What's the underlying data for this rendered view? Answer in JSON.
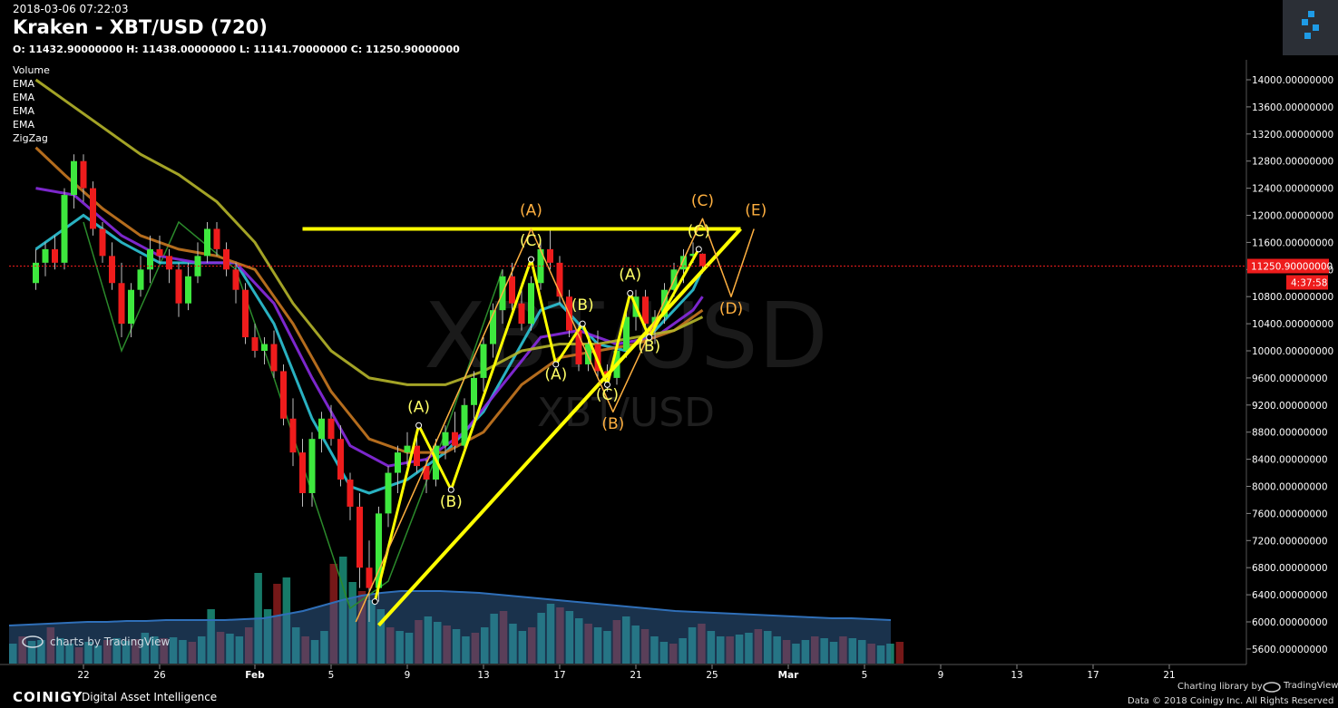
{
  "header": {
    "timestamp": "2018-03-06 07:22:03",
    "title": "Kraken - XBT/USD (720)",
    "ohlc": "O: 11432.90000000 H: 11438.00000000 L: 11141.70000000 C: 11250.90000000"
  },
  "indicators": [
    "Volume",
    "EMA",
    "EMA",
    "EMA",
    "EMA",
    "ZigZag"
  ],
  "footer": {
    "brand": "COINIGY",
    "tagline": "Digital Asset Intelligence",
    "charting_library": "Charting library by",
    "tv_brand": "TradingView",
    "data_line": "Data © 2018  Coinigy Inc. All Rights Reserved",
    "watermark": "charts by TradingView"
  },
  "chart_data": {
    "type": "candlestick",
    "watermark": "XBT/USD",
    "price_axis": {
      "ticks": [
        5600,
        6000,
        6400,
        6800,
        7200,
        7600,
        8000,
        8400,
        8800,
        9200,
        9600,
        10000,
        10400,
        10800,
        11200,
        11600,
        12000,
        12400,
        12800,
        13200,
        13600,
        14000
      ],
      "tick_labels": [
        "5600.00000000",
        "6000.00000000",
        "6400.00000000",
        "6800.00000000",
        "7200.00000000",
        "7600.00000000",
        "8000.00000000",
        "8400.00000000",
        "8800.00000000",
        "9200.00000000",
        "9600.00000000",
        "10000.00000000",
        "10400.00000000",
        "10800.00000000",
        "11200.00000000",
        "11600.00000000",
        "12000.00000000",
        "12400.00000000",
        "12800.00000000",
        "13200.00000000",
        "13600.00000000",
        "14000.00000000"
      ],
      "current_price": 11250.9,
      "current_label": "11250.90000000",
      "countdown": "4:37:58"
    },
    "time_axis": {
      "labels": [
        "22",
        "26",
        "Feb",
        "5",
        "9",
        "13",
        "17",
        "21",
        "25",
        "Mar",
        "5",
        "9",
        "13",
        "17",
        "21"
      ],
      "day_index": [
        2,
        6,
        11,
        15,
        19,
        23,
        27,
        31,
        35,
        39,
        43,
        47,
        51,
        55,
        59
      ]
    },
    "candles": [
      [
        -0.5,
        11000,
        11500,
        10900,
        11300
      ],
      [
        0,
        11300,
        11600,
        11100,
        11500
      ],
      [
        0.5,
        11500,
        11700,
        11200,
        11300
      ],
      [
        1,
        11300,
        12400,
        11200,
        12300
      ],
      [
        1.5,
        12300,
        12900,
        12100,
        12800
      ],
      [
        2,
        12800,
        12900,
        12200,
        12400
      ],
      [
        2.5,
        12400,
        12500,
        11700,
        11800
      ],
      [
        3,
        11800,
        11900,
        11300,
        11400
      ],
      [
        3.5,
        11400,
        11600,
        10900,
        11000
      ],
      [
        4,
        11000,
        11300,
        10200,
        10400
      ],
      [
        4.5,
        10400,
        11000,
        10200,
        10900
      ],
      [
        5,
        10900,
        11400,
        10800,
        11200
      ],
      [
        5.5,
        11200,
        11700,
        11000,
        11500
      ],
      [
        6,
        11500,
        11700,
        11300,
        11400
      ],
      [
        6.5,
        11400,
        11500,
        11000,
        11200
      ],
      [
        7,
        11200,
        11300,
        10500,
        10700
      ],
      [
        7.5,
        10700,
        11300,
        10600,
        11100
      ],
      [
        8,
        11100,
        11600,
        11000,
        11400
      ],
      [
        8.5,
        11400,
        11900,
        11300,
        11800
      ],
      [
        9,
        11800,
        11900,
        11400,
        11500
      ],
      [
        9.5,
        11500,
        11600,
        11100,
        11200
      ],
      [
        10,
        11200,
        11300,
        10700,
        10900
      ],
      [
        10.5,
        10900,
        11000,
        10100,
        10200
      ],
      [
        11,
        10200,
        10400,
        9900,
        10000
      ],
      [
        11.5,
        10000,
        10200,
        9800,
        10100
      ],
      [
        12,
        10100,
        10300,
        9600,
        9700
      ],
      [
        12.5,
        9700,
        9800,
        8900,
        9000
      ],
      [
        13,
        9000,
        9300,
        8300,
        8500
      ],
      [
        13.5,
        8500,
        8700,
        7700,
        7900
      ],
      [
        14,
        7900,
        8800,
        7700,
        8700
      ],
      [
        14.5,
        8700,
        9100,
        8500,
        9000
      ],
      [
        15,
        9000,
        9200,
        8600,
        8700
      ],
      [
        15.5,
        8700,
        8900,
        8000,
        8100
      ],
      [
        16,
        8100,
        8200,
        7500,
        7700
      ],
      [
        16.5,
        7700,
        7900,
        6500,
        6800
      ],
      [
        17,
        6800,
        7200,
        6000,
        6500
      ],
      [
        17.5,
        6500,
        7700,
        6300,
        7600
      ],
      [
        18,
        7600,
        8300,
        7400,
        8200
      ],
      [
        18.5,
        8200,
        8600,
        7900,
        8500
      ],
      [
        19,
        8500,
        8800,
        8300,
        8600
      ],
      [
        19.5,
        8600,
        8800,
        8200,
        8300
      ],
      [
        20,
        8300,
        8400,
        7900,
        8100
      ],
      [
        20.5,
        8100,
        8700,
        8000,
        8600
      ],
      [
        21,
        8600,
        8900,
        8400,
        8800
      ],
      [
        21.5,
        8800,
        9100,
        8500,
        8600
      ],
      [
        22,
        8600,
        9300,
        8500,
        9200
      ],
      [
        22.5,
        9200,
        9700,
        9000,
        9600
      ],
      [
        23,
        9600,
        10200,
        9400,
        10100
      ],
      [
        23.5,
        10100,
        10700,
        9900,
        10600
      ],
      [
        24,
        10600,
        11200,
        10400,
        11100
      ],
      [
        24.5,
        11100,
        11300,
        10600,
        10700
      ],
      [
        25,
        10700,
        11000,
        10300,
        10400
      ],
      [
        25.5,
        10400,
        11100,
        10300,
        11000
      ],
      [
        26,
        11000,
        11600,
        10900,
        11500
      ],
      [
        26.5,
        11500,
        11800,
        11200,
        11300
      ],
      [
        27,
        11300,
        11400,
        10700,
        10800
      ],
      [
        27.5,
        10800,
        10900,
        10200,
        10300
      ],
      [
        28,
        10300,
        10400,
        9700,
        9800
      ],
      [
        28.5,
        9800,
        10200,
        9700,
        10100
      ],
      [
        29,
        10100,
        10300,
        9600,
        9700
      ],
      [
        29.5,
        9700,
        9800,
        9400,
        9600
      ],
      [
        30,
        9600,
        10100,
        9500,
        10000
      ],
      [
        30.5,
        10000,
        10600,
        9900,
        10500
      ],
      [
        31,
        10500,
        10900,
        10300,
        10800
      ],
      [
        31.5,
        10800,
        10900,
        10300,
        10400
      ],
      [
        32,
        10400,
        10600,
        10100,
        10500
      ],
      [
        32.5,
        10500,
        11000,
        10400,
        10900
      ],
      [
        33,
        10900,
        11300,
        10800,
        11200
      ],
      [
        33.5,
        11200,
        11500,
        11000,
        11400
      ],
      [
        34,
        11400,
        11600,
        11300,
        11432.9
      ],
      [
        34.5,
        11432.9,
        11438,
        11141.7,
        11250.9
      ]
    ],
    "emas": [
      {
        "color": "#2ec4d6",
        "points": [
          [
            -0.5,
            11500
          ],
          [
            2,
            12000
          ],
          [
            4,
            11600
          ],
          [
            6,
            11300
          ],
          [
            8,
            11300
          ],
          [
            10,
            11300
          ],
          [
            12,
            10400
          ],
          [
            14,
            9000
          ],
          [
            16,
            8000
          ],
          [
            17,
            7900
          ],
          [
            19,
            8100
          ],
          [
            21,
            8500
          ],
          [
            23,
            9100
          ],
          [
            25,
            10100
          ],
          [
            26,
            10600
          ],
          [
            27,
            10700
          ],
          [
            29,
            10100
          ],
          [
            30.5,
            10000
          ],
          [
            32,
            10300
          ],
          [
            34,
            10900
          ],
          [
            34.5,
            11200
          ]
        ]
      },
      {
        "color": "#8a2be2",
        "points": [
          [
            -0.5,
            12400
          ],
          [
            1.5,
            12300
          ],
          [
            4,
            11700
          ],
          [
            6,
            11400
          ],
          [
            8,
            11300
          ],
          [
            10,
            11300
          ],
          [
            12,
            10700
          ],
          [
            14,
            9600
          ],
          [
            16,
            8600
          ],
          [
            18,
            8300
          ],
          [
            20,
            8400
          ],
          [
            22,
            8800
          ],
          [
            24,
            9500
          ],
          [
            26,
            10200
          ],
          [
            28,
            10300
          ],
          [
            30,
            10100
          ],
          [
            32,
            10200
          ],
          [
            34,
            10600
          ],
          [
            34.5,
            10800
          ]
        ]
      },
      {
        "color": "#c87820",
        "points": [
          [
            -0.5,
            13000
          ],
          [
            1,
            12600
          ],
          [
            3,
            12100
          ],
          [
            5,
            11700
          ],
          [
            7,
            11500
          ],
          [
            9,
            11400
          ],
          [
            11,
            11200
          ],
          [
            13,
            10400
          ],
          [
            15,
            9400
          ],
          [
            17,
            8700
          ],
          [
            19,
            8500
          ],
          [
            21,
            8500
          ],
          [
            23,
            8800
          ],
          [
            25,
            9500
          ],
          [
            27,
            9900
          ],
          [
            29,
            10000
          ],
          [
            31,
            10100
          ],
          [
            33,
            10300
          ],
          [
            34.5,
            10600
          ]
        ]
      },
      {
        "color": "#b5b52a",
        "points": [
          [
            -0.5,
            14000
          ],
          [
            1,
            13700
          ],
          [
            3,
            13300
          ],
          [
            5,
            12900
          ],
          [
            7,
            12600
          ],
          [
            9,
            12200
          ],
          [
            11,
            11600
          ],
          [
            13,
            10700
          ],
          [
            15,
            10000
          ],
          [
            17,
            9600
          ],
          [
            19,
            9500
          ],
          [
            21,
            9500
          ],
          [
            23,
            9700
          ],
          [
            25,
            10000
          ],
          [
            27,
            10100
          ],
          [
            29,
            10100
          ],
          [
            31,
            10200
          ],
          [
            33,
            10300
          ],
          [
            34.5,
            10500
          ]
        ]
      }
    ],
    "zigzag_green": [
      [
        2,
        11900
      ],
      [
        4,
        10000
      ],
      [
        7,
        11900
      ],
      [
        10,
        11200
      ],
      [
        12,
        9600
      ],
      [
        16,
        6200
      ],
      [
        18,
        6600
      ],
      [
        21,
        8800
      ],
      [
        24,
        11200
      ]
    ],
    "pattern_lines": [
      {
        "color": "#ffff00",
        "width": 4,
        "points": [
          [
            13.5,
            11800
          ],
          [
            36.5,
            11800
          ]
        ]
      },
      {
        "color": "#ffff00",
        "width": 4,
        "points": [
          [
            17.5,
            5950
          ],
          [
            36.5,
            11800
          ]
        ]
      },
      {
        "color": "#ffff00",
        "width": 3,
        "points": [
          [
            17.3,
            6300
          ],
          [
            19.6,
            8900
          ],
          [
            21.3,
            7950
          ],
          [
            25.5,
            11350
          ],
          [
            26.8,
            9800
          ],
          [
            28.2,
            10400
          ],
          [
            29.5,
            9500
          ],
          [
            30.7,
            10850
          ],
          [
            31.7,
            10200
          ],
          [
            34.3,
            11500
          ]
        ]
      },
      {
        "color": "#ffb040",
        "width": 1.5,
        "points": [
          [
            16.3,
            6000
          ],
          [
            25.5,
            11800
          ],
          [
            29.8,
            9100
          ],
          [
            34.5,
            11950
          ],
          [
            36,
            10800
          ],
          [
            37.2,
            11800
          ]
        ]
      }
    ],
    "wave_labels": [
      {
        "text": "(A)",
        "t": 19.6,
        "p": 9100,
        "color": "#ffff66"
      },
      {
        "text": "(B)",
        "t": 21.3,
        "p": 7700,
        "color": "#ffff66"
      },
      {
        "text": "(C)",
        "t": 25.5,
        "p": 11550,
        "color": "#ffff66"
      },
      {
        "text": "(A)",
        "t": 26.8,
        "p": 9580,
        "color": "#ffff66"
      },
      {
        "text": "(B)",
        "t": 28.2,
        "p": 10600,
        "color": "#ffff66"
      },
      {
        "text": "(C)",
        "t": 29.5,
        "p": 9280,
        "color": "#ffff66"
      },
      {
        "text": "(A)",
        "t": 30.7,
        "p": 11050,
        "color": "#ffff66"
      },
      {
        "text": "(B)",
        "t": 31.7,
        "p": 9990,
        "color": "#ffff66"
      },
      {
        "text": "(C)",
        "t": 34.3,
        "p": 11690,
        "color": "#ffff66"
      },
      {
        "text": "(A)",
        "t": 25.5,
        "p": 12000,
        "color": "#ffb040"
      },
      {
        "text": "(B)",
        "t": 29.8,
        "p": 8850,
        "color": "#ffb040"
      },
      {
        "text": "(C)",
        "t": 34.5,
        "p": 12140,
        "color": "#ffb040"
      },
      {
        "text": "(D)",
        "t": 36.0,
        "p": 10550,
        "color": "#ffb040"
      },
      {
        "text": "(E)",
        "t": 37.3,
        "p": 12000,
        "color": "#ffb040"
      }
    ],
    "volume_bars": [
      22,
      30,
      25,
      26,
      40,
      28,
      22,
      18,
      24,
      20,
      26,
      28,
      25,
      27,
      34,
      30,
      28,
      29,
      26,
      24,
      30,
      60,
      35,
      33,
      30,
      40,
      100,
      60,
      88,
      95,
      40,
      30,
      26,
      36,
      110,
      118,
      90,
      80,
      70,
      60,
      40,
      36,
      34,
      48,
      52,
      46,
      42,
      38,
      30,
      34,
      40,
      55,
      58,
      44,
      36,
      40,
      56,
      66,
      62,
      58,
      50,
      44,
      40,
      36,
      48,
      52,
      42,
      38,
      30,
      24,
      22,
      28,
      40,
      44,
      36,
      30,
      30,
      32,
      34,
      38,
      36,
      30,
      26,
      22,
      26,
      30,
      28,
      24,
      30,
      28,
      26,
      22,
      20,
      22,
      24
    ],
    "volume_ma": [
      22,
      23,
      24,
      25,
      26,
      26,
      27,
      27,
      28,
      28,
      28,
      28,
      29,
      30,
      34,
      38,
      44,
      50,
      55,
      58,
      60,
      60,
      60,
      59,
      58,
      56,
      54,
      52,
      50,
      48,
      46,
      44,
      42,
      40,
      38,
      37,
      36,
      35,
      34,
      33,
      32,
      31,
      30,
      30,
      29,
      28
    ]
  }
}
